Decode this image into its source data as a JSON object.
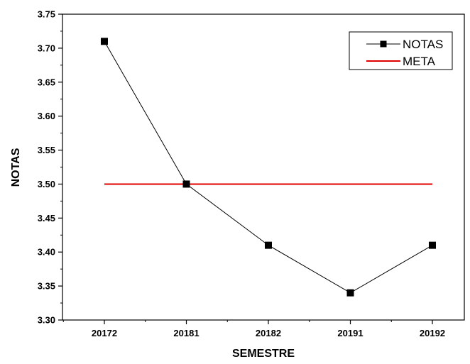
{
  "chart_data": {
    "type": "line",
    "title": "",
    "xlabel": "SEMESTRE",
    "ylabel": "NOTAS",
    "categories": [
      "20172",
      "20181",
      "20182",
      "20191",
      "20192"
    ],
    "ylim": [
      3.3,
      3.75
    ],
    "yticks": [
      "3.30",
      "3.35",
      "3.40",
      "3.45",
      "3.50",
      "3.55",
      "3.60",
      "3.65",
      "3.70",
      "3.75"
    ],
    "grid": false,
    "legend_position": "top-right",
    "series": [
      {
        "name": "NOTAS",
        "values": [
          3.71,
          3.5,
          3.41,
          3.34,
          3.41
        ],
        "color": "#000000",
        "marker": "square"
      },
      {
        "name": "META",
        "values": [
          3.5,
          3.5,
          3.5,
          3.5,
          3.5
        ],
        "color": "#e00000",
        "marker": "none"
      }
    ]
  }
}
